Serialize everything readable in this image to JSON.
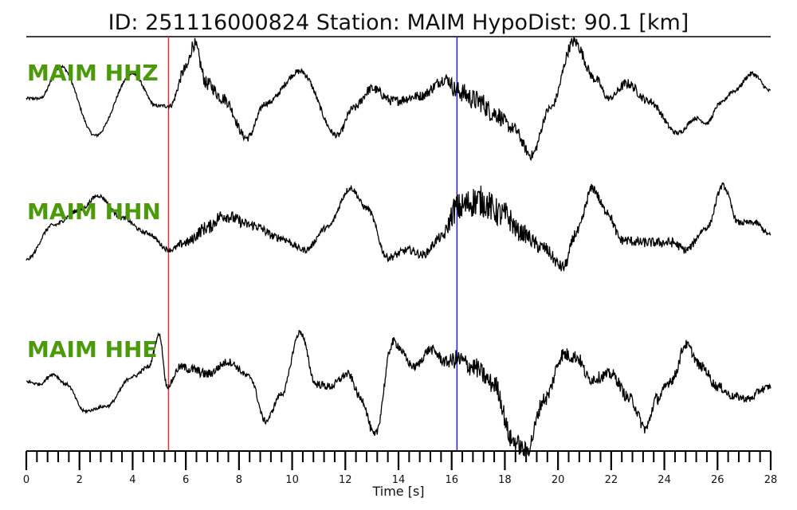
{
  "header": {
    "title": "ID: 251116000824   Station: MAIM   HypoDist:     90.1 [km]"
  },
  "chart_data": {
    "type": "line",
    "title": "ID: 251116000824   Station: MAIM   HypoDist:     90.1 [km]",
    "xlabel": "Time [s]",
    "ylabel": "",
    "xlim": [
      0,
      28
    ],
    "x_ticks": [
      0,
      2,
      4,
      6,
      8,
      10,
      12,
      14,
      16,
      18,
      20,
      22,
      24,
      26,
      28
    ],
    "x_tick_labels": [
      "0",
      "2",
      "4",
      "6",
      "8",
      "10",
      "12",
      "14",
      "16",
      "18",
      "20",
      "22",
      "24",
      "26",
      "28"
    ],
    "minor_tick_step": 0.4,
    "grid": false,
    "markers": [
      {
        "phase": "P",
        "time": 5.35,
        "color": "#e03030"
      },
      {
        "phase": "S",
        "time": 16.2,
        "color": "#2020e0"
      }
    ],
    "trace_color": "#000000",
    "label_color": "#4a9a0a",
    "series": [
      {
        "name": "MAIM HHZ",
        "x": [
          0,
          0.5,
          1.3,
          2.6,
          4.0,
          4.9,
          5.4,
          6.0,
          6.3,
          6.8,
          7.4,
          8.3,
          9.0,
          10.3,
          11.7,
          12.3,
          13.0,
          13.8,
          14.8,
          15.8,
          16.2,
          17.0,
          17.6,
          18.3,
          19.0,
          19.7,
          20.6,
          21.4,
          21.9,
          22.6,
          23.4,
          24.5,
          25.2,
          25.6,
          26.1,
          26.6,
          27.3,
          28.0
        ],
        "y": [
          0.2,
          0.2,
          0.85,
          -0.55,
          0.7,
          0.05,
          0.05,
          0.8,
          1.3,
          0.5,
          0.2,
          -0.6,
          0.1,
          0.75,
          -0.55,
          0.0,
          0.4,
          0.15,
          0.25,
          0.6,
          0.35,
          0.15,
          -0.1,
          -0.4,
          -0.95,
          0.0,
          1.35,
          0.6,
          0.2,
          0.5,
          0.15,
          -0.5,
          -0.2,
          -0.3,
          0.1,
          0.35,
          0.7,
          0.35
        ],
        "noise": [
          0.03,
          0.03,
          0.03,
          0.03,
          0.03,
          0.03,
          0.05,
          0.12,
          0.14,
          0.14,
          0.12,
          0.08,
          0.06,
          0.06,
          0.06,
          0.08,
          0.1,
          0.1,
          0.1,
          0.12,
          0.2,
          0.22,
          0.2,
          0.12,
          0.1,
          0.08,
          0.12,
          0.1,
          0.06,
          0.1,
          0.08,
          0.05,
          0.04,
          0.04,
          0.04,
          0.04,
          0.05,
          0.04
        ]
      },
      {
        "name": "MAIM HHN",
        "x": [
          0,
          1.0,
          2.0,
          2.7,
          3.6,
          4.5,
          5.4,
          6.0,
          6.8,
          7.4,
          8.5,
          9.5,
          10.5,
          11.3,
          12.2,
          12.8,
          13.6,
          14.4,
          14.9,
          15.6,
          16.2,
          17.0,
          18.0,
          18.6,
          19.4,
          20.2,
          20.7,
          21.3,
          21.8,
          22.4,
          23.2,
          24.3,
          24.8,
          25.6,
          26.2,
          26.8,
          27.4,
          28.0
        ],
        "y": [
          -0.55,
          0.15,
          0.45,
          0.75,
          0.3,
          0.0,
          -0.35,
          -0.2,
          0.1,
          0.35,
          0.15,
          -0.1,
          -0.35,
          0.1,
          0.9,
          0.5,
          -0.5,
          -0.35,
          -0.45,
          -0.1,
          0.5,
          0.65,
          0.35,
          0.0,
          -0.3,
          -0.7,
          0.0,
          0.9,
          0.45,
          -0.15,
          -0.2,
          -0.2,
          -0.35,
          0.1,
          0.95,
          0.2,
          0.2,
          -0.05
        ],
        "noise": [
          0.03,
          0.04,
          0.04,
          0.04,
          0.04,
          0.04,
          0.05,
          0.1,
          0.14,
          0.14,
          0.1,
          0.08,
          0.06,
          0.06,
          0.06,
          0.06,
          0.08,
          0.08,
          0.08,
          0.1,
          0.3,
          0.32,
          0.28,
          0.18,
          0.14,
          0.12,
          0.12,
          0.1,
          0.1,
          0.1,
          0.1,
          0.1,
          0.08,
          0.06,
          0.06,
          0.06,
          0.06,
          0.05
        ]
      },
      {
        "name": "MAIM HHE",
        "x": [
          0,
          0.5,
          1.0,
          1.5,
          2.2,
          3.0,
          4.0,
          4.6,
          5.0,
          5.3,
          5.8,
          6.2,
          6.8,
          7.6,
          8.4,
          9.0,
          9.6,
          10.3,
          10.9,
          11.4,
          12.1,
          12.6,
          13.1,
          13.8,
          14.6,
          15.2,
          15.8,
          16.2,
          16.8,
          17.6,
          18.3,
          18.8,
          19.5,
          20.2,
          20.7,
          21.2,
          22.0,
          22.7,
          23.3,
          23.7,
          24.3,
          24.8,
          25.4,
          26.0,
          26.6,
          27.2,
          27.7,
          28.0
        ],
        "y": [
          0.05,
          0.0,
          0.2,
          0.0,
          -0.55,
          -0.45,
          0.15,
          0.35,
          1.0,
          -0.05,
          0.35,
          0.3,
          0.2,
          0.45,
          0.15,
          -0.75,
          -0.2,
          1.05,
          0.0,
          -0.05,
          0.2,
          -0.3,
          -1.05,
          0.85,
          0.35,
          0.7,
          0.45,
          0.5,
          0.35,
          0.0,
          -1.15,
          -1.35,
          -0.3,
          0.6,
          0.55,
          0.1,
          0.2,
          -0.3,
          -0.9,
          -0.3,
          0.1,
          0.8,
          0.35,
          -0.05,
          -0.25,
          -0.3,
          -0.1,
          -0.05
        ],
        "noise": [
          0.03,
          0.03,
          0.03,
          0.03,
          0.03,
          0.03,
          0.04,
          0.04,
          0.04,
          0.05,
          0.08,
          0.1,
          0.1,
          0.08,
          0.06,
          0.06,
          0.06,
          0.06,
          0.08,
          0.08,
          0.08,
          0.08,
          0.1,
          0.1,
          0.08,
          0.1,
          0.12,
          0.2,
          0.2,
          0.2,
          0.2,
          0.18,
          0.15,
          0.15,
          0.14,
          0.12,
          0.12,
          0.12,
          0.12,
          0.12,
          0.12,
          0.1,
          0.1,
          0.1,
          0.08,
          0.08,
          0.08,
          0.06
        ]
      }
    ]
  }
}
